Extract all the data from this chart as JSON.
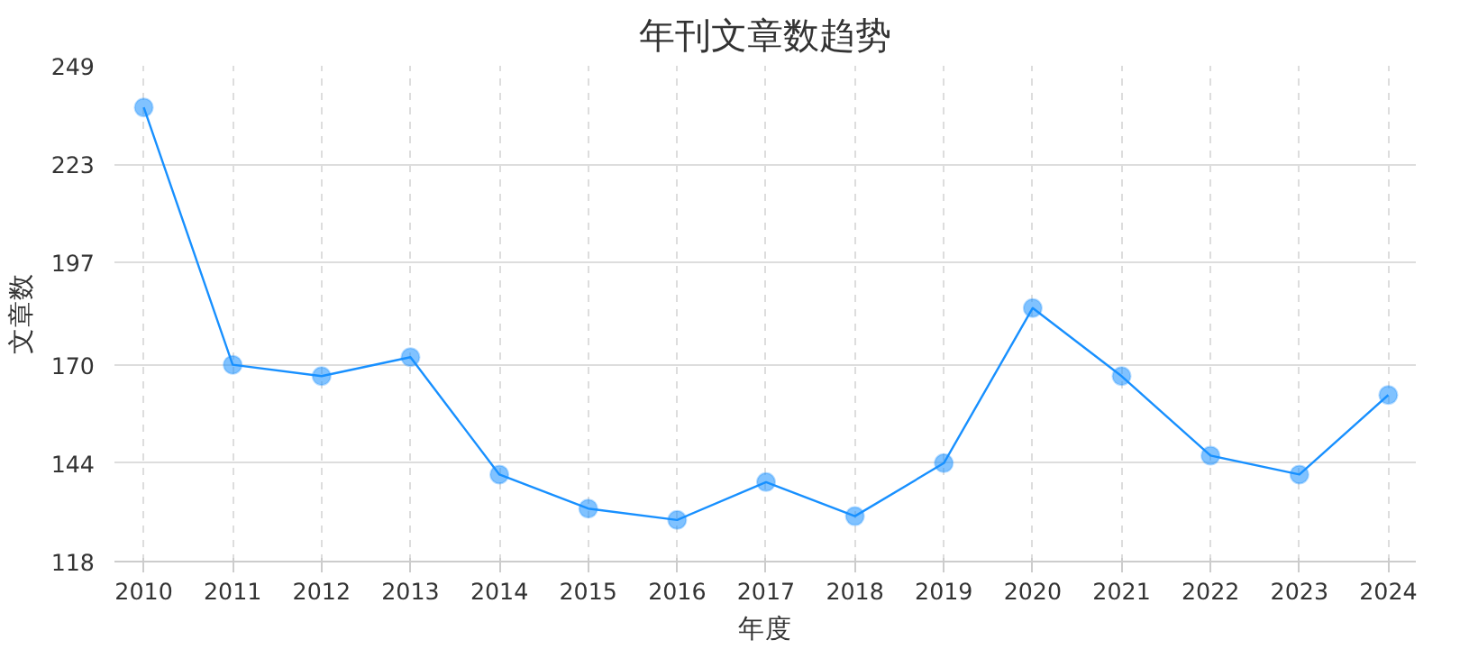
{
  "chart_data": {
    "type": "line",
    "title": "年刊文章数趋势",
    "xlabel": "年度",
    "ylabel": "文章数",
    "categories": [
      "2010",
      "2011",
      "2012",
      "2013",
      "2014",
      "2015",
      "2016",
      "2017",
      "2018",
      "2019",
      "2020",
      "2021",
      "2022",
      "2023",
      "2024"
    ],
    "series": [
      {
        "color": "#1890ff",
        "values": [
          238,
          170,
          167,
          172,
          141,
          132,
          129,
          139,
          130,
          144,
          185,
          167,
          146,
          141,
          162
        ]
      }
    ],
    "ylim": [
      118,
      249
    ],
    "yticks": [
      118,
      144,
      170,
      197,
      223,
      249
    ],
    "grid": true,
    "marker": "circle",
    "line_style": "solid"
  }
}
